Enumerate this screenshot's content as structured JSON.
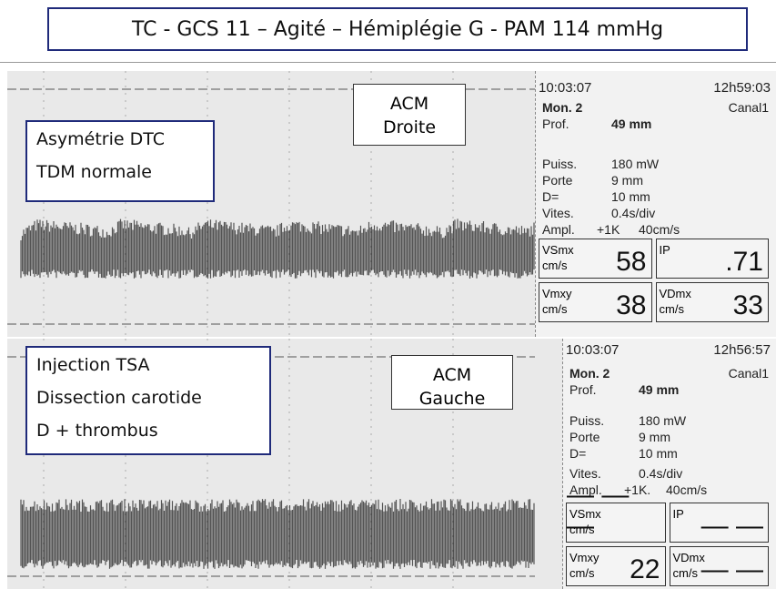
{
  "title": "TC - GCS 11 – Agité – Hémiplégie G - PAM 114 mmHg",
  "panels": [
    {
      "notes": [
        "Asymétrie DTC",
        "TDM normale"
      ],
      "vessel": [
        "ACM",
        "Droite"
      ],
      "time_left": "10:03:07",
      "time_right": "12h59:03",
      "monitor": "Mon. 2",
      "channel": "Canal1",
      "params": [
        [
          "Prof.",
          "49 mm"
        ],
        [
          "Puiss.",
          "180 mW"
        ],
        [
          "Porte",
          "9 mm"
        ],
        [
          "D=",
          "10 mm"
        ],
        [
          "Vites.",
          "0.4s/div"
        ],
        [
          "Ampl.",
          "+1K",
          "40cm/s"
        ]
      ],
      "readouts": [
        {
          "label": [
            "VSmx",
            "cm/s"
          ],
          "value": "58"
        },
        {
          "label": [
            "IP"
          ],
          "value": ".71"
        },
        {
          "label": [
            "Vmxy",
            "cm/s"
          ],
          "value": "38"
        },
        {
          "label": [
            "VDmx",
            "cm/s"
          ],
          "value": "33"
        }
      ]
    },
    {
      "notes": [
        "Injection TSA",
        "Dissection carotide",
        "D + thrombus"
      ],
      "vessel": [
        "ACM",
        "Gauche"
      ],
      "time_left": "10:03:07",
      "time_right": "12h56:57",
      "monitor": "Mon. 2",
      "channel": "Canal1",
      "params": [
        [
          "Prof.",
          "49 mm"
        ],
        [
          "Puiss.",
          "180 mW"
        ],
        [
          "Porte",
          "9 mm"
        ],
        [
          "D=",
          "10 mm"
        ],
        [
          "Vites.",
          "0.4s/div"
        ],
        [
          "Ampl.",
          "+1K.",
          "40cm/s"
        ]
      ],
      "readouts": [
        {
          "label": [
            "VSmx",
            "cm/s"
          ],
          "value": "— — —"
        },
        {
          "label": [
            "IP"
          ],
          "value": "— —"
        },
        {
          "label": [
            "Vmxy",
            "cm/s"
          ],
          "value": "22"
        },
        {
          "label": [
            "VDmx",
            "cm/s"
          ],
          "value": "— —"
        }
      ]
    }
  ]
}
